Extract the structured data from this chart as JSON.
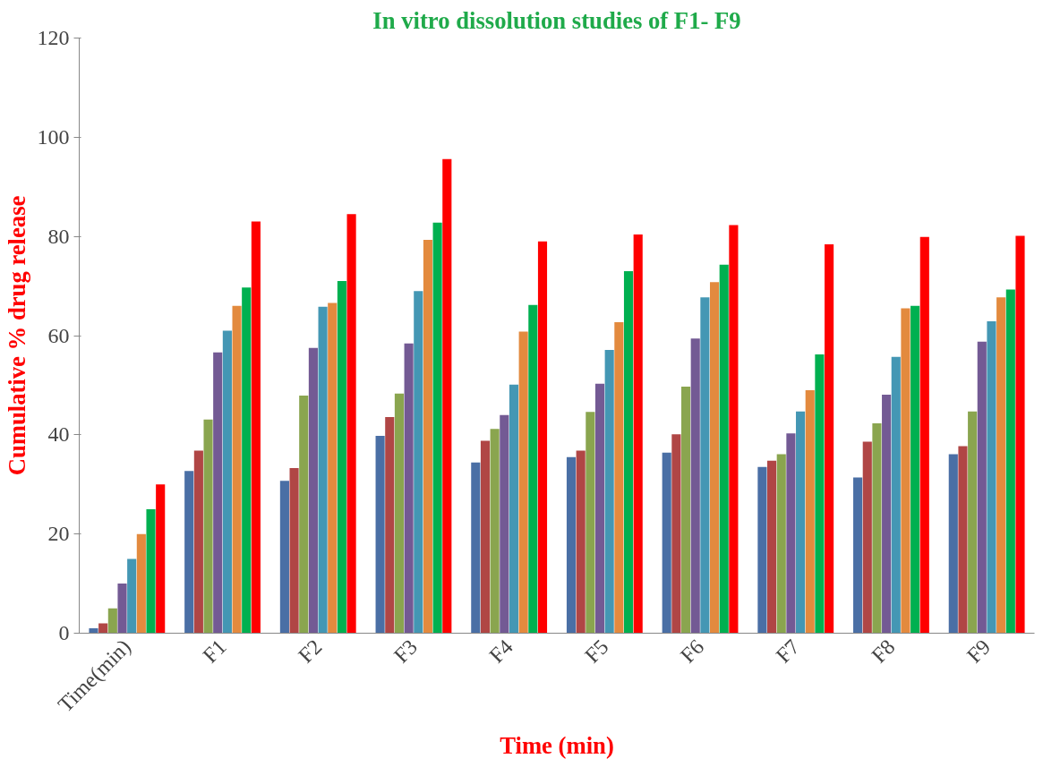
{
  "chart_data": {
    "type": "bar",
    "title": "In vitro dissolution studies of F1- F9",
    "xlabel": "Time (min)",
    "ylabel": "Cumulative % drug release",
    "categories": [
      "Time(min)",
      "F1",
      "F2",
      "F3",
      "F4",
      "F5",
      "F6",
      "F7",
      "F8",
      "F9"
    ],
    "series": [
      {
        "color": "#4a6fa5",
        "values": [
          1,
          32.7,
          30.7,
          39.8,
          34.4,
          35.5,
          36.4,
          33.5,
          31.4,
          36.1
        ]
      },
      {
        "color": "#b04645",
        "values": [
          2,
          36.8,
          33.3,
          43.6,
          38.8,
          36.8,
          40.1,
          34.8,
          38.6,
          37.7
        ]
      },
      {
        "color": "#8aa54f",
        "values": [
          5,
          43.1,
          47.9,
          48.3,
          41.2,
          44.6,
          49.7,
          36.1,
          42.3,
          44.7
        ]
      },
      {
        "color": "#735a94",
        "values": [
          10,
          56.6,
          57.5,
          58.4,
          44,
          50.3,
          59.4,
          40.3,
          48.1,
          58.8
        ]
      },
      {
        "color": "#4497b4",
        "values": [
          15,
          61,
          65.8,
          69,
          50.1,
          57.1,
          67.7,
          44.7,
          55.7,
          62.9
        ]
      },
      {
        "color": "#e38a3e",
        "values": [
          20,
          66,
          66.6,
          79.3,
          60.8,
          62.7,
          70.8,
          49,
          65.5,
          67.7
        ]
      },
      {
        "color": "#00b050",
        "values": [
          25,
          69.7,
          71,
          82.8,
          66.2,
          73,
          74.3,
          56.2,
          66,
          69.3
        ]
      },
      {
        "color": "#ff0000",
        "values": [
          30,
          83,
          84.5,
          95.6,
          79,
          80.4,
          82.3,
          78.4,
          79.9,
          80.1
        ]
      }
    ],
    "ylim": [
      0,
      120
    ],
    "yticks": [
      0,
      20,
      40,
      60,
      80,
      100,
      120
    ],
    "grid": false
  }
}
